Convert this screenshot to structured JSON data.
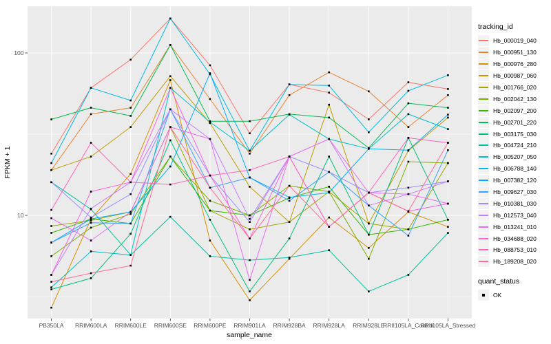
{
  "chart_data": {
    "type": "line",
    "title": "",
    "xlabel": "sample_name",
    "ylabel": "FPKM + 1",
    "y_scale": "log10",
    "y_ticks": [
      10,
      100
    ],
    "y_minor_ticks": [
      3.162,
      31.62
    ],
    "ylim": [
      2.3,
      192
    ],
    "grid": "on",
    "panel_bg": "#ebebeb",
    "grid_color": "#ffffff",
    "point_marker": {
      "shape": "square",
      "color": "#000000",
      "size": 2.6
    },
    "categories": [
      "PB350LA",
      "RRIM600LA",
      "RRIM600LE",
      "RRIM600SE",
      "RRIM600PE",
      "RRIM901LA",
      "RRIM928BA",
      "RRIM928LA",
      "RRIM928LE",
      "RRII105LA_Control",
      "RRII105LA_Stressed"
    ],
    "legend": {
      "title": "tracking_id",
      "position": "right"
    },
    "legend2": {
      "title": "quant_status",
      "items": [
        {
          "label": "OK",
          "marker": "black-square"
        }
      ]
    },
    "series": [
      {
        "name": "Hb_000019_040",
        "color": "#F8766D",
        "values": [
          24,
          61,
          91,
          163,
          84,
          32,
          64,
          57,
          39,
          66,
          60
        ]
      },
      {
        "name": "Hb_000951_130",
        "color": "#EA8331",
        "values": [
          19,
          42,
          46,
          112,
          52,
          24,
          55,
          76,
          58,
          35,
          55
        ]
      },
      {
        "name": "Hb_000976_280",
        "color": "#D89000",
        "values": [
          2.7,
          9.5,
          18,
          68,
          7,
          3,
          5.4,
          9.7,
          6.3,
          10.5,
          8.5
        ]
      },
      {
        "name": "Hb_000987_060",
        "color": "#C09B00",
        "values": [
          19,
          23,
          35,
          72,
          37,
          15,
          9.1,
          48,
          8.9,
          25,
          40
        ]
      },
      {
        "name": "Hb_001766_020",
        "color": "#A3A500",
        "values": [
          8.6,
          9.3,
          10.5,
          35,
          10.7,
          8.2,
          9.1,
          14,
          8.9,
          8.2,
          21
        ]
      },
      {
        "name": "Hb_002042_130",
        "color": "#7CAE00",
        "values": [
          5.6,
          8.4,
          10.2,
          23,
          12.3,
          10,
          15.2,
          14,
          5.4,
          21.4,
          21
        ]
      },
      {
        "name": "Hb_002097_200",
        "color": "#39B600",
        "values": [
          7.8,
          9.5,
          8.9,
          23,
          10.7,
          10,
          12.8,
          15,
          7.6,
          8.2,
          9.4
        ]
      },
      {
        "name": "Hb_002701_220",
        "color": "#00BB4E",
        "values": [
          39,
          46,
          41,
          112,
          38,
          38,
          42,
          40,
          26,
          49,
          46
        ]
      },
      {
        "name": "Hb_003175_030",
        "color": "#00BF7D",
        "values": [
          3.5,
          4.1,
          7.7,
          29,
          9.4,
          3.4,
          7.2,
          23,
          7.6,
          30,
          9.4
        ]
      },
      {
        "name": "Hb_004724_210",
        "color": "#00C1A3",
        "values": [
          16,
          10.9,
          5.7,
          9.8,
          5.6,
          5.3,
          5.5,
          6.1,
          3.4,
          4.3,
          7.8
        ]
      },
      {
        "name": "Hb_005207_050",
        "color": "#00BFC4",
        "values": [
          3.6,
          6,
          5.7,
          61,
          37.5,
          25,
          41.7,
          29.5,
          25.7,
          42,
          34
        ]
      },
      {
        "name": "Hb_006788_140",
        "color": "#00BAE0",
        "values": [
          21,
          61,
          51,
          163,
          74,
          25,
          64,
          63,
          32.5,
          58.5,
          73
        ]
      },
      {
        "name": "Hb_007382_120",
        "color": "#00B0F6",
        "values": [
          6.8,
          9.5,
          10.5,
          20,
          75,
          17.1,
          12.9,
          13.8,
          25.7,
          25.2,
          41.7
        ]
      },
      {
        "name": "Hb_009627_030",
        "color": "#35A2FF",
        "values": [
          6.8,
          9,
          8.9,
          45,
          14.8,
          17.1,
          12.3,
          18.5,
          11.5,
          7.5,
          25.2
        ]
      },
      {
        "name": "Hb_010381_030",
        "color": "#9590FF",
        "values": [
          16,
          9.7,
          13.5,
          45,
          17.6,
          9.1,
          23,
          18.5,
          13.8,
          14.8,
          16.2
        ]
      },
      {
        "name": "Hb_012573_040",
        "color": "#C77CFF",
        "values": [
          4.3,
          11,
          16,
          45,
          29.5,
          9.5,
          23,
          29.5,
          11.5,
          13.5,
          16.2
        ]
      },
      {
        "name": "Hb_013241_010",
        "color": "#E76BF3",
        "values": [
          9.6,
          7,
          10.5,
          35,
          29.5,
          4,
          23,
          29.5,
          13.8,
          13.5,
          11.8
        ]
      },
      {
        "name": "Hb_034688_020",
        "color": "#FA62DB",
        "values": [
          4.3,
          14,
          16,
          61,
          17.6,
          7.2,
          23,
          8.5,
          13.8,
          10.6,
          11.8
        ]
      },
      {
        "name": "Hb_088753_010",
        "color": "#FF62BC",
        "values": [
          10.8,
          28,
          16,
          15.5,
          17.6,
          19,
          23,
          8.5,
          13.8,
          30,
          28
        ]
      },
      {
        "name": "Hb_189208_020",
        "color": "#FF6A98",
        "values": [
          3.9,
          4.4,
          4.9,
          35,
          14.8,
          7.2,
          15.2,
          8.5,
          13.8,
          10.6,
          28
        ]
      }
    ]
  }
}
